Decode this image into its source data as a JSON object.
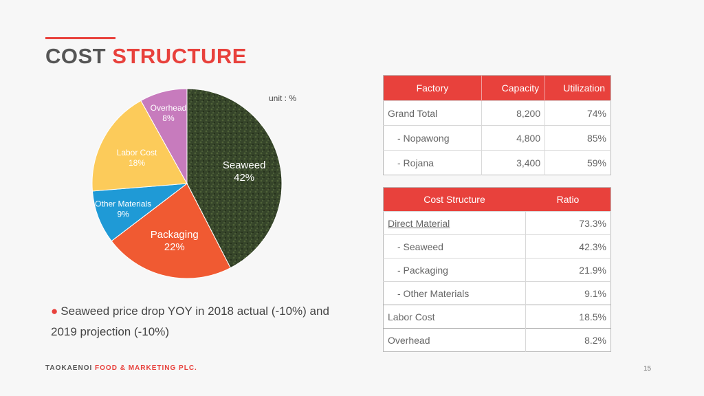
{
  "title": {
    "part1": "COST",
    "part2": "STRUCTURE"
  },
  "unit_label": "unit : %",
  "chart_data": {
    "type": "pie",
    "slices": [
      {
        "label": "Seaweed",
        "value": 42,
        "display": "42%",
        "color": "#3a4a2a"
      },
      {
        "label": "Packaging",
        "value": 22,
        "display": "22%",
        "color": "#f05a32"
      },
      {
        "label": "Other Materials",
        "value": 9,
        "display": "9%",
        "color": "#1f9ad6"
      },
      {
        "label": "Labor Cost",
        "value": 18,
        "display": "18%",
        "color": "#fccb5a"
      },
      {
        "label": "Overhead",
        "value": 8,
        "display": "8%",
        "color": "#c77bbd"
      }
    ]
  },
  "bullet": {
    "text": "Seaweed price drop YOY in 2018 actual (-10%) and 2019 projection (-10%)"
  },
  "capacity_table": {
    "headers": [
      "Factory",
      "Capacity",
      "Utilization"
    ],
    "rows": [
      {
        "label": "Grand Total",
        "capacity": "8,200",
        "utilization": "74%"
      },
      {
        "label": "- Nopawong",
        "capacity": "4,800",
        "utilization": "85%"
      },
      {
        "label": "- Rojana",
        "capacity": "3,400",
        "utilization": "59%"
      }
    ]
  },
  "cost_table": {
    "headers": [
      "Cost Structure",
      "Ratio"
    ],
    "rows": [
      {
        "label": "Direct Material",
        "ratio": "73.3%"
      },
      {
        "label": "- Seaweed",
        "ratio": "42.3%"
      },
      {
        "label": "- Packaging",
        "ratio": "21.9%"
      },
      {
        "label": "- Other Materials",
        "ratio": "9.1%"
      },
      {
        "label": "Labor Cost",
        "ratio": "18.5%"
      },
      {
        "label": "Overhead",
        "ratio": "8.2%"
      }
    ]
  },
  "footer": {
    "company1": "TAOKAENOI",
    "company2": "FOOD & MARKETING PLC.",
    "page": "15"
  }
}
